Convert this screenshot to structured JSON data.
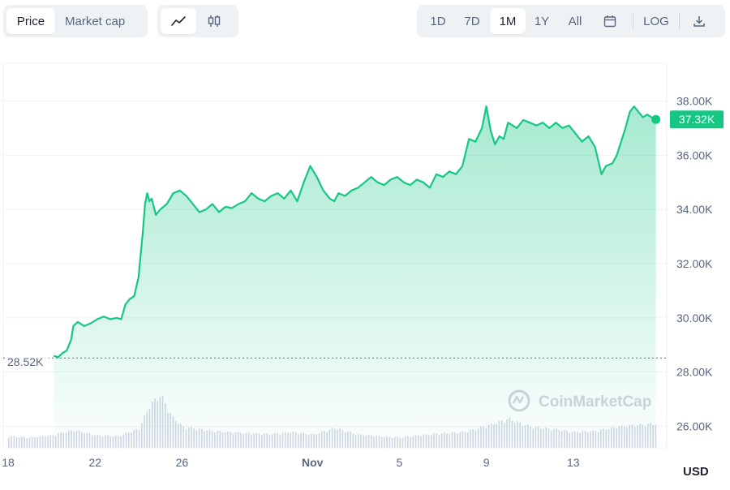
{
  "toolbar": {
    "metric_tabs": [
      {
        "label": "Price",
        "active": true
      },
      {
        "label": "Market cap",
        "active": false
      }
    ],
    "chart_style_icons": [
      "line-chart-icon",
      "candlestick-icon"
    ],
    "ranges": [
      {
        "label": "1D",
        "active": false
      },
      {
        "label": "7D",
        "active": false
      },
      {
        "label": "1M",
        "active": true
      },
      {
        "label": "1Y",
        "active": false
      },
      {
        "label": "All",
        "active": false
      }
    ],
    "calendar_icon": "calendar-icon",
    "log_label": "LOG",
    "download_icon": "download-icon"
  },
  "watermark": "CoinMarketCap",
  "currency": "USD",
  "colors": {
    "line": "#16c784",
    "area_top": "#16c784",
    "volume": "#cfd6e4",
    "start_label": "#58667e",
    "current_badge_bg": "#16c784",
    "current_badge_text": "#ffffff"
  },
  "chart_data": {
    "type": "area",
    "title": "",
    "xlabel": "",
    "ylabel": "",
    "x_tick_labels": [
      {
        "day": 0,
        "label": "18"
      },
      {
        "day": 4,
        "label": "22"
      },
      {
        "day": 8,
        "label": "26"
      },
      {
        "day": 14,
        "label": "Nov"
      },
      {
        "day": 18,
        "label": "5"
      },
      {
        "day": 22,
        "label": "9"
      },
      {
        "day": 26,
        "label": "13"
      }
    ],
    "y_tick_labels": [
      "26.00K",
      "28.00K",
      "30.00K",
      "32.00K",
      "34.00K",
      "36.00K",
      "38.00K"
    ],
    "y_ticks": [
      26000,
      28000,
      30000,
      32000,
      34000,
      36000,
      38000
    ],
    "ylim": [
      25500,
      39200
    ],
    "xlim": [
      0,
      30
    ],
    "start_value": 28520,
    "start_label": "28.52K",
    "current_value": 37320,
    "current_label": "37.32K",
    "price": {
      "name": "Price",
      "x": [
        2.1,
        2.3,
        2.5,
        2.7,
        2.9,
        3.0,
        3.2,
        3.5,
        3.8,
        4.1,
        4.4,
        4.7,
        5.0,
        5.2,
        5.4,
        5.6,
        5.8,
        6.0,
        6.2,
        6.3,
        6.4,
        6.5,
        6.6,
        6.7,
        6.8,
        7.0,
        7.3,
        7.6,
        7.9,
        8.2,
        8.5,
        8.8,
        9.1,
        9.4,
        9.7,
        10.0,
        10.3,
        10.6,
        10.9,
        11.2,
        11.5,
        11.8,
        12.1,
        12.4,
        12.7,
        13.0,
        13.3,
        13.6,
        13.9,
        14.2,
        14.5,
        14.8,
        15.0,
        15.2,
        15.5,
        15.8,
        16.1,
        16.4,
        16.7,
        17.0,
        17.3,
        17.6,
        17.9,
        18.2,
        18.5,
        18.8,
        19.1,
        19.4,
        19.7,
        20.0,
        20.3,
        20.6,
        20.9,
        21.2,
        21.5,
        21.8,
        22.0,
        22.2,
        22.4,
        22.6,
        22.8,
        22.9,
        23.0,
        23.2,
        23.4,
        23.7,
        24.0,
        24.3,
        24.6,
        24.9,
        25.2,
        25.5,
        25.8,
        26.1,
        26.4,
        26.7,
        27.0,
        27.3,
        27.5,
        27.8,
        28.0,
        28.2,
        28.4,
        28.6,
        28.8,
        29.0,
        29.2,
        29.4,
        29.6,
        29.8
      ],
      "y": [
        28600,
        28550,
        28700,
        28800,
        29200,
        29700,
        29850,
        29700,
        29800,
        29950,
        30050,
        29950,
        30000,
        29950,
        30500,
        30700,
        30800,
        31500,
        33200,
        34200,
        34600,
        34300,
        34400,
        34100,
        33800,
        34000,
        34200,
        34600,
        34700,
        34500,
        34200,
        33900,
        34000,
        34200,
        33900,
        34100,
        34050,
        34200,
        34300,
        34600,
        34400,
        34300,
        34500,
        34600,
        34400,
        34700,
        34300,
        35000,
        35600,
        35200,
        34700,
        34400,
        34300,
        34600,
        34500,
        34700,
        34800,
        35000,
        35200,
        35000,
        34900,
        35100,
        35200,
        35000,
        34900,
        35100,
        35000,
        34800,
        35300,
        35200,
        35400,
        35300,
        35600,
        36600,
        36500,
        37000,
        37800,
        36900,
        36400,
        36700,
        36600,
        36900,
        37200,
        37100,
        37000,
        37300,
        37200,
        37100,
        37200,
        37000,
        37200,
        37000,
        37100,
        36800,
        36500,
        36700,
        36300,
        35300,
        35600,
        35700,
        36000,
        36500,
        37000,
        37600,
        37800,
        37600,
        37400,
        37500,
        37400,
        37320
      ]
    },
    "volume": {
      "name": "Volume",
      "x": [
        0,
        1,
        2,
        3,
        4,
        5,
        6,
        6.5,
        7,
        7.5,
        8,
        9,
        10,
        11,
        12,
        13,
        14,
        15,
        16,
        17,
        18,
        19,
        20,
        21,
        22,
        23,
        24,
        25,
        26,
        27,
        28,
        29,
        29.8
      ],
      "v": [
        0.22,
        0.2,
        0.24,
        0.34,
        0.24,
        0.22,
        0.36,
        0.82,
        1.0,
        0.6,
        0.4,
        0.34,
        0.3,
        0.28,
        0.26,
        0.3,
        0.25,
        0.38,
        0.26,
        0.22,
        0.2,
        0.24,
        0.28,
        0.3,
        0.42,
        0.55,
        0.4,
        0.36,
        0.3,
        0.32,
        0.4,
        0.44,
        0.46
      ]
    }
  }
}
